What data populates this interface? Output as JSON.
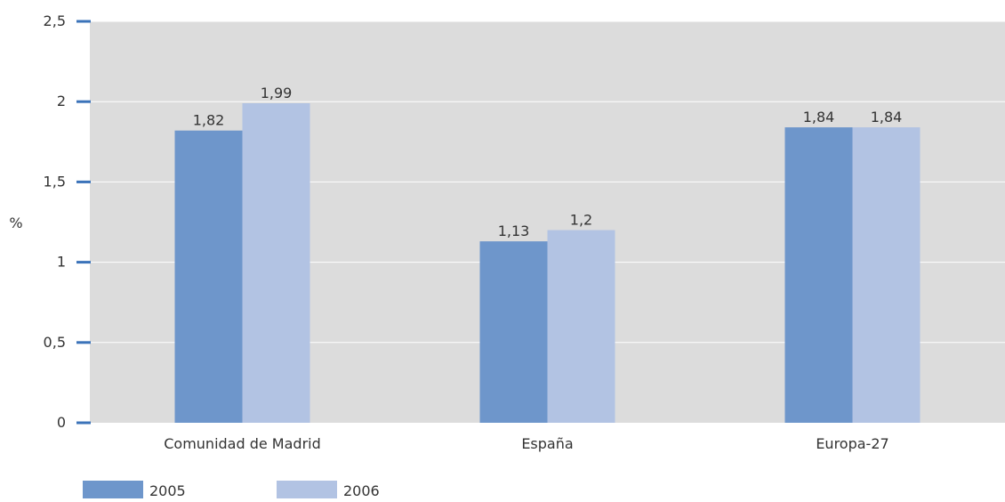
{
  "chart_data": {
    "type": "bar",
    "title": "",
    "xlabel": "",
    "ylabel": "%",
    "categories": [
      "Comunidad de Madrid",
      "España",
      "Europa-27"
    ],
    "series": [
      {
        "name": "2005",
        "values": [
          1.82,
          1.13,
          1.84
        ],
        "labels": [
          "1,82",
          "1,13",
          "1,84"
        ],
        "color": "#6e96cb"
      },
      {
        "name": "2006",
        "values": [
          1.99,
          1.2,
          1.84
        ],
        "labels": [
          "1,99",
          "1,2",
          "1,84"
        ],
        "color": "#b2c3e3"
      }
    ],
    "ylim": [
      0,
      2.5
    ],
    "yticks": [
      {
        "value": 0,
        "label": "0"
      },
      {
        "value": 0.5,
        "label": "0,5"
      },
      {
        "value": 1,
        "label": "1"
      },
      {
        "value": 1.5,
        "label": "1,5"
      },
      {
        "value": 2,
        "label": "2"
      },
      {
        "value": 2.5,
        "label": "2,5"
      }
    ],
    "grid": true,
    "legend_position": "bottom-left",
    "colors": {
      "plot_background": "#dcdcdc",
      "gridline": "#ffffff",
      "tick_mark": "#3b73b9",
      "text": "#333333"
    }
  }
}
